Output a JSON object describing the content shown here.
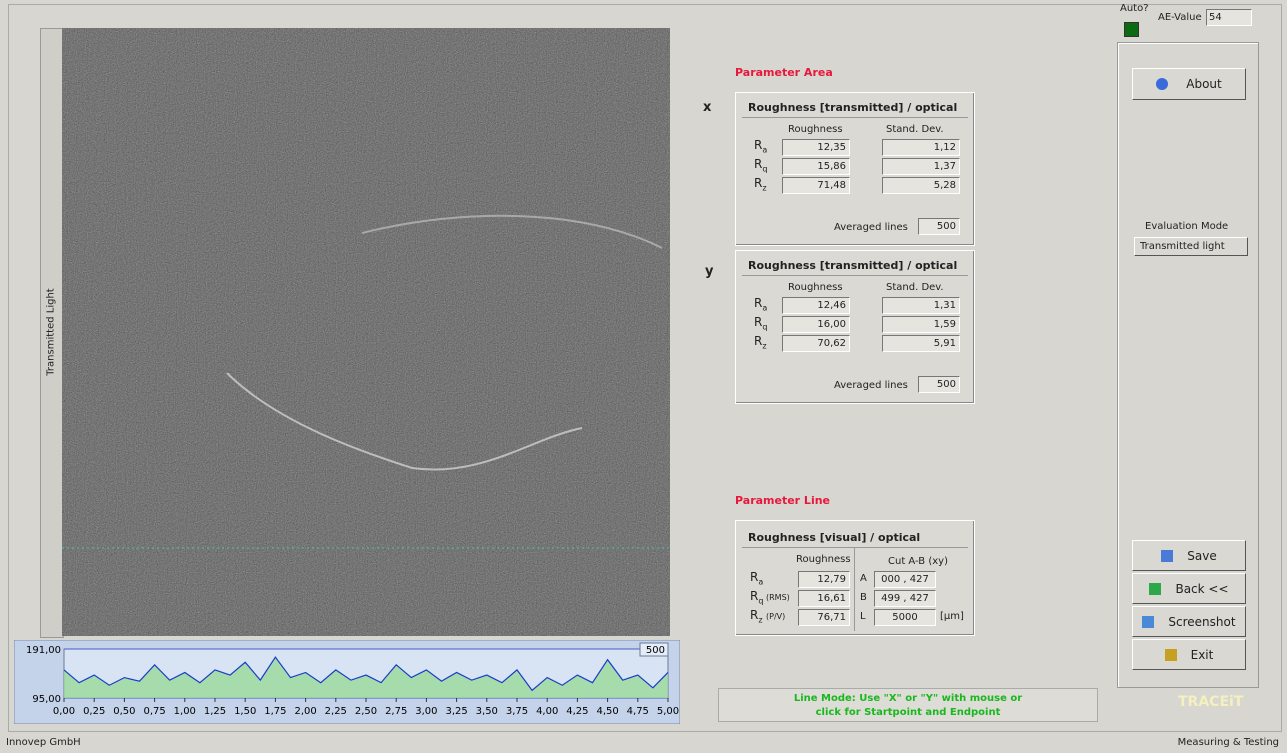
{
  "header": {
    "auto_label": "Auto?",
    "ae_label": "AE-Value",
    "ae_value": "54"
  },
  "image": {
    "side_label": "Transmitted Light"
  },
  "profile": {
    "type": "line",
    "color": "#1a3cc8",
    "xlim": [
      0,
      5
    ],
    "xticks": [
      {
        "value": 0,
        "label": "0,00"
      },
      {
        "value": 0.25,
        "label": "0,25"
      },
      {
        "value": 0.5,
        "label": "0,50"
      },
      {
        "value": 0.75,
        "label": "0,75"
      },
      {
        "value": 1,
        "label": "1,00"
      },
      {
        "value": 1.25,
        "label": "1,25"
      },
      {
        "value": 1.5,
        "label": "1,50"
      },
      {
        "value": 1.75,
        "label": "1,75"
      },
      {
        "value": 2,
        "label": "2,00"
      },
      {
        "value": 2.25,
        "label": "2,25"
      },
      {
        "value": 2.5,
        "label": "2,50"
      },
      {
        "value": 2.75,
        "label": "2,75"
      },
      {
        "value": 3,
        "label": "3,00"
      },
      {
        "value": 3.25,
        "label": "3,25"
      },
      {
        "value": 3.5,
        "label": "3,50"
      },
      {
        "value": 3.75,
        "label": "3,75"
      },
      {
        "value": 4,
        "label": "4,00"
      },
      {
        "value": 4.25,
        "label": "4,25"
      },
      {
        "value": 4.5,
        "label": "4,50"
      },
      {
        "value": 4.75,
        "label": "4,75"
      },
      {
        "value": 5,
        "label": "5,00"
      }
    ],
    "ylim": [
      95,
      191
    ],
    "yticks": [
      {
        "value": 95,
        "label": "95,00"
      },
      {
        "value": 191,
        "label": "191,00"
      }
    ],
    "marker_label": "500",
    "x": [
      0,
      0.125,
      0.25,
      0.375,
      0.5,
      0.625,
      0.75,
      0.875,
      1,
      1.125,
      1.25,
      1.375,
      1.5,
      1.625,
      1.75,
      1.875,
      2,
      2.125,
      2.25,
      2.375,
      2.5,
      2.625,
      2.75,
      2.875,
      3,
      3.125,
      3.25,
      3.375,
      3.5,
      3.625,
      3.75,
      3.875,
      4,
      4.125,
      4.25,
      4.375,
      4.5,
      4.625,
      4.75,
      4.875,
      5
    ],
    "values": [
      150,
      125,
      140,
      120,
      135,
      128,
      160,
      130,
      145,
      125,
      150,
      140,
      165,
      130,
      175,
      135,
      145,
      125,
      150,
      130,
      140,
      125,
      160,
      135,
      150,
      128,
      145,
      130,
      140,
      125,
      150,
      110,
      135,
      120,
      140,
      125,
      170,
      130,
      140,
      115,
      145
    ]
  },
  "parameter_area": {
    "title": "Parameter Area",
    "blocks": [
      {
        "axis": "x",
        "heading": "Roughness [transmitted] / optical",
        "col1": "Roughness",
        "col2": "Stand. Dev.",
        "rows": [
          {
            "name": "R",
            "sub": "a",
            "roughness": "12,35",
            "std": "1,12"
          },
          {
            "name": "R",
            "sub": "q",
            "roughness": "15,86",
            "std": "1,37"
          },
          {
            "name": "R",
            "sub": "z",
            "roughness": "71,48",
            "std": "5,28"
          }
        ],
        "avg_label": "Averaged lines",
        "avg_value": "500"
      },
      {
        "axis": "y",
        "heading": "Roughness [transmitted] / optical",
        "col1": "Roughness",
        "col2": "Stand. Dev.",
        "rows": [
          {
            "name": "R",
            "sub": "a",
            "roughness": "12,46",
            "std": "1,31"
          },
          {
            "name": "R",
            "sub": "q",
            "roughness": "16,00",
            "std": "1,59"
          },
          {
            "name": "R",
            "sub": "z",
            "roughness": "70,62",
            "std": "5,91"
          }
        ],
        "avg_label": "Averaged lines",
        "avg_value": "500"
      }
    ]
  },
  "parameter_line": {
    "title": "Parameter Line",
    "heading": "Roughness [visual] / optical",
    "col1": "Roughness",
    "col2": "Cut A-B  (xy)",
    "rows": [
      {
        "name": "R",
        "sub": "a",
        "extra": "",
        "roughness": "12,79",
        "key": "A",
        "cut": "000 , 427",
        "unit": ""
      },
      {
        "name": "R",
        "sub": "q",
        "extra": "(RMS)",
        "roughness": "16,61",
        "key": "B",
        "cut": "499 , 427",
        "unit": ""
      },
      {
        "name": "R",
        "sub": "z",
        "extra": "(P/V)",
        "roughness": "76,71",
        "key": "L",
        "cut": "5000",
        "unit": "[µm]"
      }
    ]
  },
  "side_panel": {
    "about": "About",
    "eval_label": "Evaluation Mode",
    "eval_value": "Transmitted light",
    "buttons": [
      "Save",
      "Back <<",
      "Screenshot",
      "Exit"
    ],
    "brand": "TRACEiT"
  },
  "status": {
    "hint_line1": "Line Mode: Use \"X\" or \"Y\" with mouse or",
    "hint_line2": "click for Startpoint and Endpoint"
  },
  "footer": {
    "left": "Innovep GmbH",
    "right": "Measuring & Testing"
  }
}
